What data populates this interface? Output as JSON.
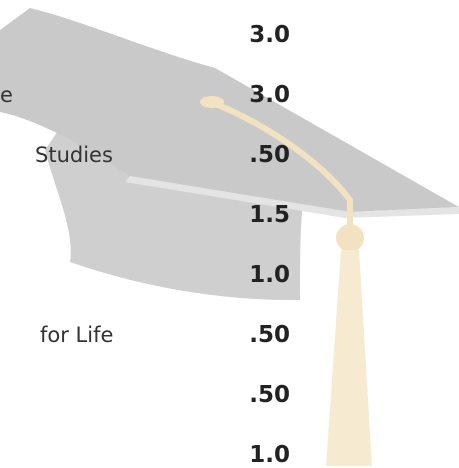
{
  "rows": [
    {
      "credit": "3.0"
    },
    {
      "label": "e",
      "credit": "3.0"
    },
    {
      "label": "Studies",
      "credit": ".50"
    },
    {
      "credit": "1.5"
    },
    {
      "credit": "1.0"
    },
    {
      "label": "for Life",
      "credit": ".50"
    },
    {
      "credit": ".50"
    },
    {
      "credit": "1.0"
    }
  ]
}
